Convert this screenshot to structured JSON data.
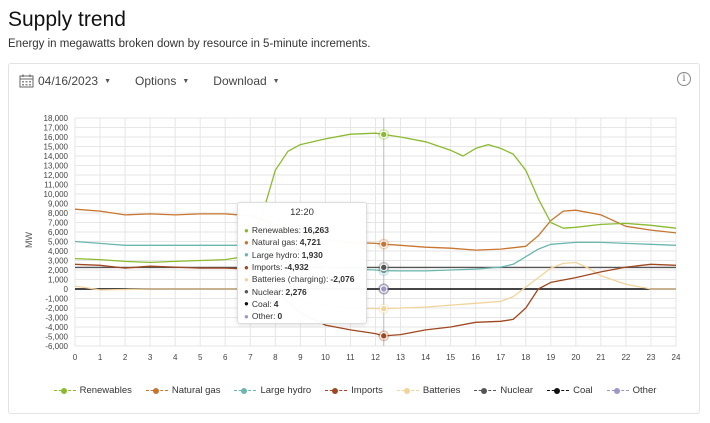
{
  "page": {
    "title": "Supply trend",
    "subtitle": "Energy in megawatts broken down by resource in 5-minute increments."
  },
  "toolbar": {
    "date": "04/16/2023",
    "options_label": "Options",
    "download_label": "Download",
    "info_symbol": "i"
  },
  "icons": {
    "date": "calendar-icon",
    "caret": "caret-down-icon",
    "info": "info-icon"
  },
  "chart_data": {
    "type": "line",
    "ylabel": "MW",
    "xlabel": "",
    "ylim": [
      -6000,
      18000
    ],
    "xlim": [
      0,
      24
    ],
    "y_ticks": [
      "18,000",
      "17,000",
      "16,000",
      "15,000",
      "14,000",
      "13,000",
      "12,000",
      "11,000",
      "10,000",
      "9,000",
      "8,000",
      "7,000",
      "6,000",
      "5,000",
      "4,000",
      "3,000",
      "2,000",
      "1,000",
      "0",
      "-1,000",
      "-2,000",
      "-3,000",
      "-4,000",
      "-5,000",
      "-6,000"
    ],
    "x_ticks": [
      "0",
      "1",
      "2",
      "3",
      "4",
      "5",
      "6",
      "7",
      "8",
      "9",
      "10",
      "11",
      "12",
      "13",
      "14",
      "15",
      "16",
      "17",
      "18",
      "19",
      "20",
      "21",
      "22",
      "23",
      "24"
    ],
    "grid": true,
    "hover_x": 12.33,
    "series": [
      {
        "name": "Renewables",
        "color": "#8bba2f",
        "x": [
          0,
          1,
          2,
          3,
          4,
          5,
          6,
          6.5,
          7,
          7.5,
          8,
          8.5,
          9,
          10,
          11,
          12,
          12.33,
          13,
          14,
          15,
          15.5,
          16,
          16.5,
          17,
          17.5,
          18,
          18.5,
          19,
          19.5,
          20,
          21,
          22,
          23,
          24
        ],
        "y": [
          3200,
          3100,
          2900,
          2800,
          2900,
          3000,
          3100,
          3300,
          4500,
          8000,
          12500,
          14500,
          15200,
          15800,
          16300,
          16400,
          16263,
          16000,
          15500,
          14600,
          14000,
          14800,
          15200,
          14800,
          14200,
          12500,
          9500,
          7000,
          6400,
          6500,
          6800,
          6900,
          6700,
          6400
        ]
      },
      {
        "name": "Natural gas",
        "color": "#c8762f",
        "x": [
          0,
          1,
          2,
          3,
          4,
          5,
          6,
          7,
          8,
          9,
          10,
          11,
          12,
          12.33,
          13,
          14,
          15,
          16,
          17,
          18,
          18.5,
          19,
          19.5,
          20,
          21,
          22,
          23,
          24
        ],
        "y": [
          8400,
          8200,
          7800,
          7900,
          7800,
          7900,
          7900,
          7700,
          6800,
          5800,
          5200,
          4900,
          4800,
          4721,
          4600,
          4400,
          4300,
          4100,
          4200,
          4500,
          5600,
          7200,
          8200,
          8300,
          7800,
          6600,
          6200,
          5900
        ]
      },
      {
        "name": "Large hydro",
        "color": "#6ab7b0",
        "x": [
          0,
          1,
          2,
          3,
          4,
          5,
          6,
          7,
          8,
          9,
          10,
          11,
          12,
          12.33,
          13,
          14,
          15,
          16,
          17,
          17.5,
          18,
          18.5,
          19,
          20,
          21,
          22,
          23,
          24
        ],
        "y": [
          5000,
          4800,
          4600,
          4600,
          4600,
          4600,
          4600,
          4600,
          3800,
          2800,
          2300,
          2100,
          2000,
          1930,
          1900,
          1900,
          2000,
          2100,
          2300,
          2600,
          3400,
          4200,
          4700,
          4900,
          4900,
          4800,
          4700,
          4600
        ]
      },
      {
        "name": "Imports",
        "color": "#a0471f",
        "x": [
          0,
          1,
          2,
          3,
          4,
          5,
          6,
          7,
          8,
          9,
          10,
          11,
          12,
          12.33,
          13,
          14,
          15,
          16,
          17,
          17.5,
          18,
          18.5,
          19,
          20,
          21,
          22,
          23,
          24
        ],
        "y": [
          2600,
          2500,
          2200,
          2400,
          2300,
          2200,
          2200,
          2100,
          -200,
          -2500,
          -3800,
          -4300,
          -4700,
          -4932,
          -4800,
          -4300,
          -4000,
          -3500,
          -3400,
          -3200,
          -2000,
          0,
          700,
          1200,
          1800,
          2300,
          2600,
          2500
        ]
      },
      {
        "name": "Batteries",
        "color": "#f2d49a",
        "x": [
          0,
          1,
          2,
          3,
          4,
          5,
          6,
          7,
          8,
          9,
          10,
          11,
          12,
          12.33,
          13,
          14,
          15,
          16,
          17,
          17.5,
          18,
          18.5,
          19,
          19.5,
          20,
          20.5,
          21,
          22,
          23,
          24
        ],
        "y": [
          300,
          -100,
          -50,
          0,
          0,
          0,
          0,
          0,
          -200,
          -1200,
          -1800,
          -2000,
          -2050,
          -2076,
          -2000,
          -1900,
          -1700,
          -1500,
          -1300,
          -800,
          200,
          1200,
          2200,
          2700,
          2800,
          2200,
          1400,
          500,
          0,
          0
        ]
      },
      {
        "name": "Nuclear",
        "color": "#555555",
        "x": [
          0,
          24
        ],
        "y": [
          2276,
          2276
        ]
      },
      {
        "name": "Coal",
        "color": "#111111",
        "x": [
          0,
          24
        ],
        "y": [
          4,
          4
        ]
      },
      {
        "name": "Other",
        "color": "#9b97c9",
        "x": [
          0,
          24
        ],
        "y": [
          0,
          0
        ]
      }
    ]
  },
  "tooltip": {
    "time": "12:20",
    "rows": [
      {
        "label": "Renewables:",
        "value": "16,263",
        "color": "#8bba2f"
      },
      {
        "label": "Natural gas:",
        "value": "4,721",
        "color": "#c8762f"
      },
      {
        "label": "Large hydro:",
        "value": "1,930",
        "color": "#6ab7b0"
      },
      {
        "label": "Imports:",
        "value": "-4,932",
        "color": "#a0471f"
      },
      {
        "label": "Batteries (charging):",
        "value": "-2,076",
        "color": "#f2d49a"
      },
      {
        "label": "Nuclear:",
        "value": "2,276",
        "color": "#555555"
      },
      {
        "label": "Coal:",
        "value": "4",
        "color": "#111111"
      },
      {
        "label": "Other:",
        "value": "0",
        "color": "#9b97c9"
      }
    ]
  },
  "legend": [
    {
      "label": "Renewables",
      "color": "#8bba2f"
    },
    {
      "label": "Natural gas",
      "color": "#c8762f"
    },
    {
      "label": "Large hydro",
      "color": "#6ab7b0"
    },
    {
      "label": "Imports",
      "color": "#a0471f"
    },
    {
      "label": "Batteries",
      "color": "#f2d49a"
    },
    {
      "label": "Nuclear",
      "color": "#555555"
    },
    {
      "label": "Coal",
      "color": "#111111"
    },
    {
      "label": "Other",
      "color": "#9b97c9"
    }
  ]
}
